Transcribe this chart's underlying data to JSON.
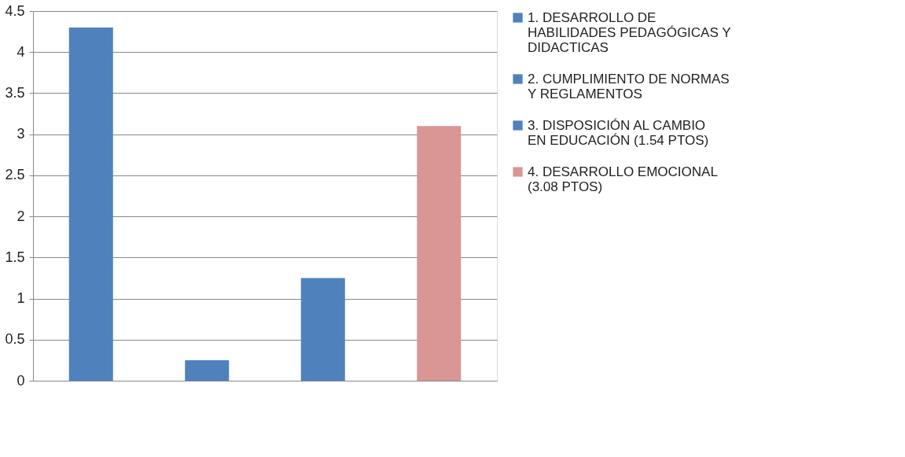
{
  "chart_data": {
    "type": "bar",
    "categories": [
      null,
      null,
      null,
      null
    ],
    "series": [
      {
        "name": "1. DESARROLLO DE HABILIDADES PEDAGÓGICAS Y DIDACTICAS",
        "color": "#4f81bd",
        "values": [
          4.3,
          null,
          null,
          null
        ]
      },
      {
        "name": "2. CUMPLIMIENTO DE NORMAS Y REGLAMENTOS",
        "color": "#4f81bd",
        "values": [
          null,
          0.25,
          null,
          null
        ]
      },
      {
        "name": "3. DISPOSICIÓN AL CAMBIO EN EDUCACIÓN (1.54 PTOS)",
        "color": "#4f81bd",
        "values": [
          null,
          null,
          1.25,
          null
        ]
      },
      {
        "name": "4. DESARROLLO EMOCIONAL (3.08 PTOS)",
        "color": "#d99694",
        "values": [
          null,
          null,
          null,
          3.1
        ]
      }
    ],
    "ylim": [
      0,
      4.5
    ],
    "yticks": [
      0,
      0.5,
      1,
      1.5,
      2,
      2.5,
      3,
      3.5,
      4,
      4.5
    ],
    "grid": "y",
    "legend": "right"
  }
}
